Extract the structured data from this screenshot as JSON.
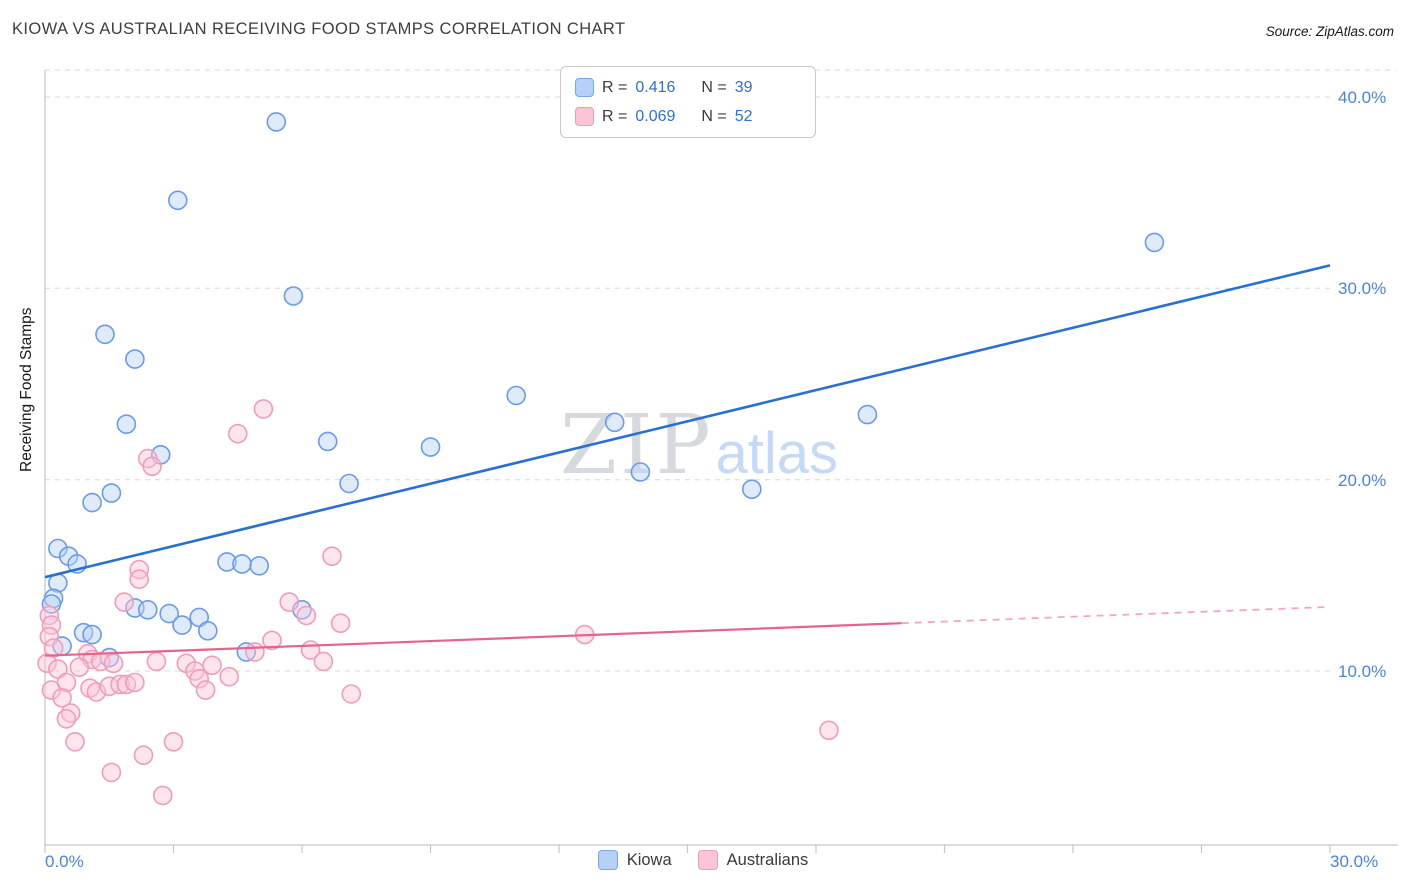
{
  "title": "KIOWA VS AUSTRALIAN RECEIVING FOOD STAMPS CORRELATION CHART",
  "source": "Source: ZipAtlas.com",
  "watermark": {
    "zip": "ZIP",
    "atlas": "atlas"
  },
  "legend_box": {
    "rows": [
      {
        "series": "Kiowa",
        "r_label": "R =",
        "r_value": "0.416",
        "n_label": "N =",
        "n_value": "39"
      },
      {
        "series": "Australians",
        "r_label": "R =",
        "r_value": "0.069",
        "n_label": "N =",
        "n_value": "52"
      }
    ]
  },
  "bottom_legend": [
    "Kiowa",
    "Australians"
  ],
  "axes": {
    "y_tick_labels": [
      "40.0%",
      "30.0%",
      "20.0%",
      "10.0%"
    ],
    "x_tick_labels": [
      "0.0%",
      "30.0%"
    ]
  },
  "colors": {
    "tick_label_blue": "#4a86d8",
    "value_blue": "#2e6fd6",
    "kiowa_line": "#2a6fd4",
    "australians_line": "#e8638c"
  },
  "chart_data": {
    "type": "scatter",
    "title": "KIOWA VS AUSTRALIAN RECEIVING FOOD STAMPS CORRELATION CHART",
    "xlabel": "",
    "ylabel": "Receiving Food Stamps",
    "xlim": [
      0,
      30
    ],
    "ylim": [
      0,
      41.5
    ],
    "grid": "horizontal-dashed",
    "legend_position": "bottom-center",
    "axes": {
      "xlim": [
        0,
        30
      ],
      "x_tick_step": 3,
      "grid_y": [
        10,
        20,
        30,
        40
      ]
    },
    "series": [
      {
        "name": "Kiowa",
        "R": 0.416,
        "N": 39,
        "fill": "#b9d2f6",
        "stroke": "#6b9be8",
        "line": "#2a6fd4",
        "line_width": 2.6,
        "trend": {
          "x0": 0,
          "y0": 14.9,
          "x1": 30,
          "y1": 31.2
        },
        "points": [
          [
            5.4,
            38.7
          ],
          [
            3.1,
            34.6
          ],
          [
            25.9,
            32.4
          ],
          [
            5.8,
            29.6
          ],
          [
            1.4,
            27.6
          ],
          [
            2.1,
            26.3
          ],
          [
            1.9,
            22.9
          ],
          [
            2.7,
            21.3
          ],
          [
            6.6,
            22.0
          ],
          [
            9.0,
            21.7
          ],
          [
            11.0,
            24.4
          ],
          [
            13.3,
            23.0
          ],
          [
            19.2,
            23.4
          ],
          [
            13.9,
            20.4
          ],
          [
            16.5,
            19.5
          ],
          [
            7.1,
            19.8
          ],
          [
            1.1,
            18.8
          ],
          [
            1.55,
            19.3
          ],
          [
            0.3,
            16.4
          ],
          [
            0.55,
            16.0
          ],
          [
            0.75,
            15.6
          ],
          [
            0.3,
            14.6
          ],
          [
            0.2,
            13.8
          ],
          [
            0.15,
            13.5
          ],
          [
            0.9,
            12.0
          ],
          [
            0.4,
            11.3
          ],
          [
            1.1,
            11.9
          ],
          [
            1.5,
            10.7
          ],
          [
            2.1,
            13.3
          ],
          [
            2.4,
            13.2
          ],
          [
            2.9,
            13.0
          ],
          [
            3.2,
            12.4
          ],
          [
            3.6,
            12.8
          ],
          [
            3.8,
            12.1
          ],
          [
            4.25,
            15.7
          ],
          [
            4.6,
            15.6
          ],
          [
            5.0,
            15.5
          ],
          [
            4.7,
            11.0
          ],
          [
            6.0,
            13.2
          ]
        ]
      },
      {
        "name": "Australians",
        "R": 0.069,
        "N": 52,
        "fill": "#fbc6d7",
        "stroke": "#f29cba",
        "line": "#e8638c",
        "dash_line": "#f2a5bd",
        "line_width": 2.2,
        "trend": {
          "x0": 0,
          "y0": 10.8,
          "x1": 20,
          "y1": 12.5,
          "dash_x1": 30,
          "dash_y1": 13.35
        },
        "points": [
          [
            5.1,
            23.7
          ],
          [
            4.5,
            22.4
          ],
          [
            2.4,
            21.1
          ],
          [
            2.5,
            20.7
          ],
          [
            6.7,
            16.0
          ],
          [
            2.2,
            15.3
          ],
          [
            1.85,
            13.6
          ],
          [
            12.6,
            11.9
          ],
          [
            18.3,
            6.9
          ],
          [
            0.1,
            12.9
          ],
          [
            0.15,
            12.4
          ],
          [
            0.1,
            11.8
          ],
          [
            0.2,
            11.2
          ],
          [
            0.05,
            10.4
          ],
          [
            0.3,
            10.1
          ],
          [
            0.5,
            9.4
          ],
          [
            0.15,
            9.0
          ],
          [
            0.4,
            8.6
          ],
          [
            0.6,
            7.8
          ],
          [
            0.5,
            7.5
          ],
          [
            0.7,
            6.3
          ],
          [
            1.0,
            10.9
          ],
          [
            1.1,
            10.6
          ],
          [
            1.3,
            10.5
          ],
          [
            1.05,
            9.1
          ],
          [
            1.2,
            8.9
          ],
          [
            1.6,
            10.4
          ],
          [
            1.5,
            9.2
          ],
          [
            1.75,
            9.3
          ],
          [
            1.9,
            9.3
          ],
          [
            2.1,
            9.4
          ],
          [
            1.55,
            4.7
          ],
          [
            2.3,
            5.6
          ],
          [
            2.75,
            3.5
          ],
          [
            3.0,
            6.3
          ],
          [
            3.3,
            10.4
          ],
          [
            3.5,
            10.0
          ],
          [
            3.6,
            9.6
          ],
          [
            3.75,
            9.0
          ],
          [
            3.9,
            10.3
          ],
          [
            4.3,
            9.7
          ],
          [
            4.9,
            11.0
          ],
          [
            5.3,
            11.6
          ],
          [
            5.7,
            13.6
          ],
          [
            6.1,
            12.9
          ],
          [
            6.2,
            11.1
          ],
          [
            6.5,
            10.5
          ],
          [
            7.15,
            8.8
          ],
          [
            0.8,
            10.2
          ],
          [
            2.6,
            10.5
          ],
          [
            6.9,
            12.5
          ],
          [
            2.2,
            14.8
          ]
        ]
      }
    ]
  }
}
